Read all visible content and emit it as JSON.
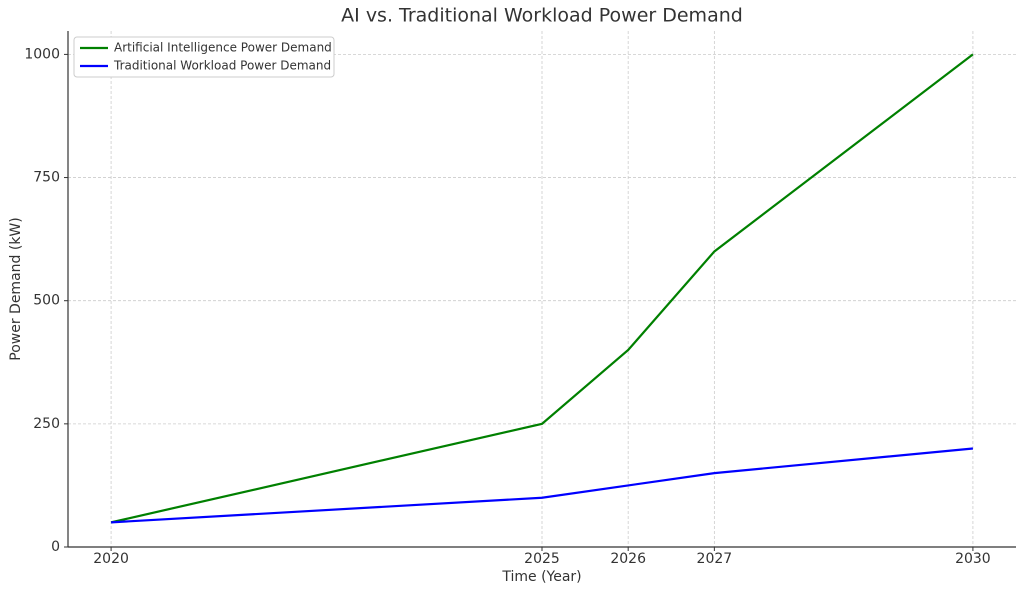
{
  "chart_data": {
    "type": "line",
    "title": "AI vs. Traditional Workload Power Demand",
    "xlabel": "Time (Year)",
    "ylabel": "Power Demand (kW)",
    "x": [
      2020,
      2025,
      2026,
      2027,
      2030
    ],
    "series": [
      {
        "name": "Artificial Intelligence Power Demand",
        "color": "#008000",
        "values": [
          50,
          250,
          400,
          600,
          1000
        ]
      },
      {
        "name": "Traditional Workload Power Demand",
        "color": "#0000ff",
        "values": [
          50,
          100,
          125,
          150,
          200
        ]
      }
    ],
    "xlim": [
      2019.5,
      2030.5
    ],
    "xticks": [
      2020,
      2025,
      2026,
      2027,
      2030
    ],
    "ylim": [
      0,
      1047.5
    ],
    "yticks": [
      0,
      250,
      500,
      750,
      1000
    ],
    "grid": true,
    "legend": "upper left"
  }
}
